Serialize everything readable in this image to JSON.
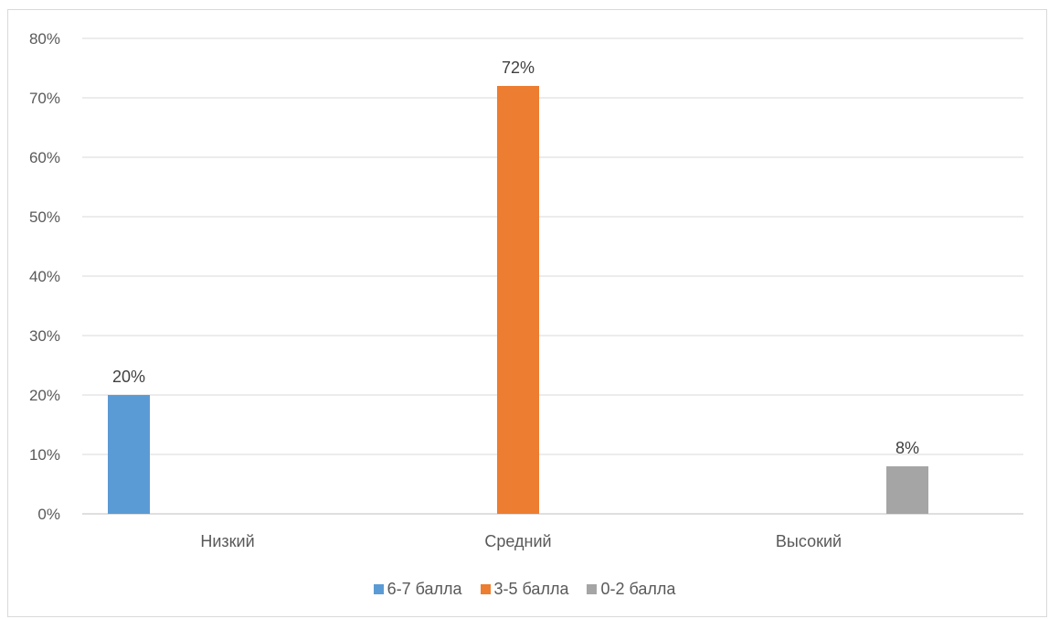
{
  "chart_data": {
    "type": "bar",
    "categories": [
      "Низкий",
      "Средний",
      "Высокий"
    ],
    "series": [
      {
        "name": "6-7 балла",
        "color": "#5b9bd5",
        "values": [
          20,
          null,
          null
        ],
        "labels": [
          "20%",
          "",
          ""
        ]
      },
      {
        "name": "3-5 балла",
        "color": "#ed7d31",
        "values": [
          null,
          72,
          null
        ],
        "labels": [
          "",
          "72%",
          ""
        ]
      },
      {
        "name": "0-2 балла",
        "color": "#a5a5a5",
        "values": [
          null,
          null,
          8
        ],
        "labels": [
          "",
          "",
          "8%"
        ]
      }
    ],
    "yticks": [
      "0%",
      "10%",
      "20%",
      "30%",
      "40%",
      "50%",
      "60%",
      "70%",
      "80%"
    ],
    "ylim": [
      0,
      80
    ],
    "grid": true,
    "legend_position": "bottom"
  }
}
